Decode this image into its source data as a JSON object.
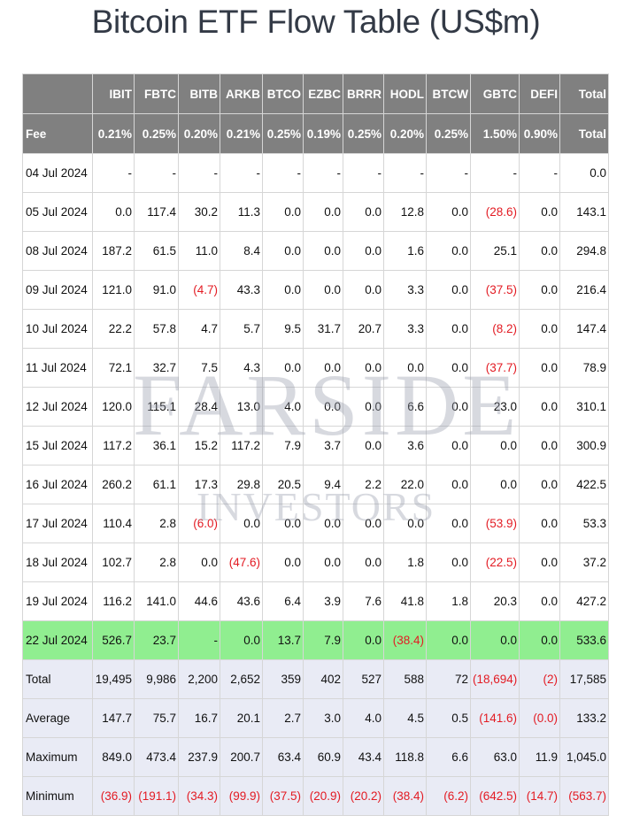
{
  "title": "Bitcoin ETF Flow Table (US$m)",
  "watermark": {
    "line1": "FARSIDE",
    "line2": "INVESTORS"
  },
  "header": [
    "",
    "IBIT",
    "FBTC",
    "BITB",
    "ARKB",
    "BTCO",
    "EZBC",
    "BRRR",
    "HODL",
    "BTCW",
    "GBTC",
    "DEFI",
    "Total"
  ],
  "fees": [
    "Fee",
    "0.21%",
    "0.25%",
    "0.20%",
    "0.21%",
    "0.25%",
    "0.19%",
    "0.25%",
    "0.20%",
    "0.25%",
    "1.50%",
    "0.90%",
    "Total"
  ],
  "rows": [
    [
      "04 Jul 2024",
      "-",
      "-",
      "-",
      "-",
      "-",
      "-",
      "-",
      "-",
      "-",
      "-",
      "-",
      "0.0"
    ],
    [
      "05 Jul 2024",
      "0.0",
      "117.4",
      "30.2",
      "11.3",
      "0.0",
      "0.0",
      "0.0",
      "12.8",
      "0.0",
      "(28.6)",
      "0.0",
      "143.1"
    ],
    [
      "08 Jul 2024",
      "187.2",
      "61.5",
      "11.0",
      "8.4",
      "0.0",
      "0.0",
      "0.0",
      "1.6",
      "0.0",
      "25.1",
      "0.0",
      "294.8"
    ],
    [
      "09 Jul 2024",
      "121.0",
      "91.0",
      "(4.7)",
      "43.3",
      "0.0",
      "0.0",
      "0.0",
      "3.3",
      "0.0",
      "(37.5)",
      "0.0",
      "216.4"
    ],
    [
      "10 Jul 2024",
      "22.2",
      "57.8",
      "4.7",
      "5.7",
      "9.5",
      "31.7",
      "20.7",
      "3.3",
      "0.0",
      "(8.2)",
      "0.0",
      "147.4"
    ],
    [
      "11 Jul 2024",
      "72.1",
      "32.7",
      "7.5",
      "4.3",
      "0.0",
      "0.0",
      "0.0",
      "0.0",
      "0.0",
      "(37.7)",
      "0.0",
      "78.9"
    ],
    [
      "12 Jul 2024",
      "120.0",
      "115.1",
      "28.4",
      "13.0",
      "4.0",
      "0.0",
      "0.0",
      "6.6",
      "0.0",
      "23.0",
      "0.0",
      "310.1"
    ],
    [
      "15 Jul 2024",
      "117.2",
      "36.1",
      "15.2",
      "117.2",
      "7.9",
      "3.7",
      "0.0",
      "3.6",
      "0.0",
      "0.0",
      "0.0",
      "300.9"
    ],
    [
      "16 Jul 2024",
      "260.2",
      "61.1",
      "17.3",
      "29.8",
      "20.5",
      "9.4",
      "2.2",
      "22.0",
      "0.0",
      "0.0",
      "0.0",
      "422.5"
    ],
    [
      "17 Jul 2024",
      "110.4",
      "2.8",
      "(6.0)",
      "0.0",
      "0.0",
      "0.0",
      "0.0",
      "0.0",
      "0.0",
      "(53.9)",
      "0.0",
      "53.3"
    ],
    [
      "18 Jul 2024",
      "102.7",
      "2.8",
      "0.0",
      "(47.6)",
      "0.0",
      "0.0",
      "0.0",
      "1.8",
      "0.0",
      "(22.5)",
      "0.0",
      "37.2"
    ],
    [
      "19 Jul 2024",
      "116.2",
      "141.0",
      "44.6",
      "43.6",
      "6.4",
      "3.9",
      "7.6",
      "41.8",
      "1.8",
      "20.3",
      "0.0",
      "427.2"
    ],
    [
      "22 Jul 2024",
      "526.7",
      "23.7",
      "-",
      "0.0",
      "13.7",
      "7.9",
      "0.0",
      "(38.4)",
      "0.0",
      "0.0",
      "0.0",
      "533.6"
    ]
  ],
  "highlight_row": "22 Jul 2024",
  "summary": [
    [
      "Total",
      "19,495",
      "9,986",
      "2,200",
      "2,652",
      "359",
      "402",
      "527",
      "588",
      "72",
      "(18,694)",
      "(2)",
      "17,585"
    ],
    [
      "Average",
      "147.7",
      "75.7",
      "16.7",
      "20.1",
      "2.7",
      "3.0",
      "4.0",
      "4.5",
      "0.5",
      "(141.6)",
      "(0.0)",
      "133.2"
    ],
    [
      "Maximum",
      "849.0",
      "473.4",
      "237.9",
      "200.7",
      "63.4",
      "60.9",
      "43.4",
      "118.8",
      "6.6",
      "63.0",
      "11.9",
      "1,045.0"
    ],
    [
      "Minimum",
      "(36.9)",
      "(191.1)",
      "(34.3)",
      "(99.9)",
      "(37.5)",
      "(20.9)",
      "(20.2)",
      "(38.4)",
      "(6.2)",
      "(642.5)",
      "(14.7)",
      "(563.7)"
    ]
  ],
  "colors": {
    "header_bg": "#808080",
    "header_text": "#ffffff",
    "negative": "#e31b23",
    "highlight_bg": "#90ee90",
    "summary_bg": "#e9ebf5",
    "title": "#333a46"
  }
}
